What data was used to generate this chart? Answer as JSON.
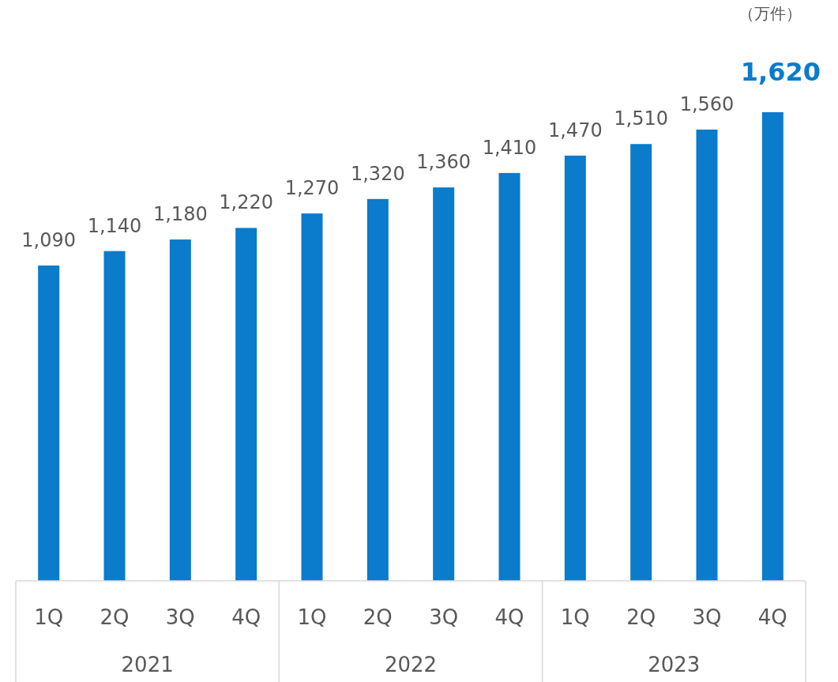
{
  "chart_data": {
    "type": "bar",
    "categories": [
      "1Q",
      "2Q",
      "3Q",
      "4Q",
      "1Q",
      "2Q",
      "3Q",
      "4Q",
      "1Q",
      "2Q",
      "3Q",
      "4Q"
    ],
    "values": [
      1090,
      1140,
      1180,
      1220,
      1270,
      1320,
      1360,
      1410,
      1470,
      1510,
      1560,
      1620
    ],
    "value_labels": [
      "1,090",
      "1,140",
      "1,180",
      "1,220",
      "1,270",
      "1,320",
      "1,360",
      "1,410",
      "1,470",
      "1,510",
      "1,560",
      "1,620"
    ],
    "color": "#0b7bcb",
    "annotations": [
      "（万件）",
      "2021",
      "2022",
      "2023"
    ]
  }
}
